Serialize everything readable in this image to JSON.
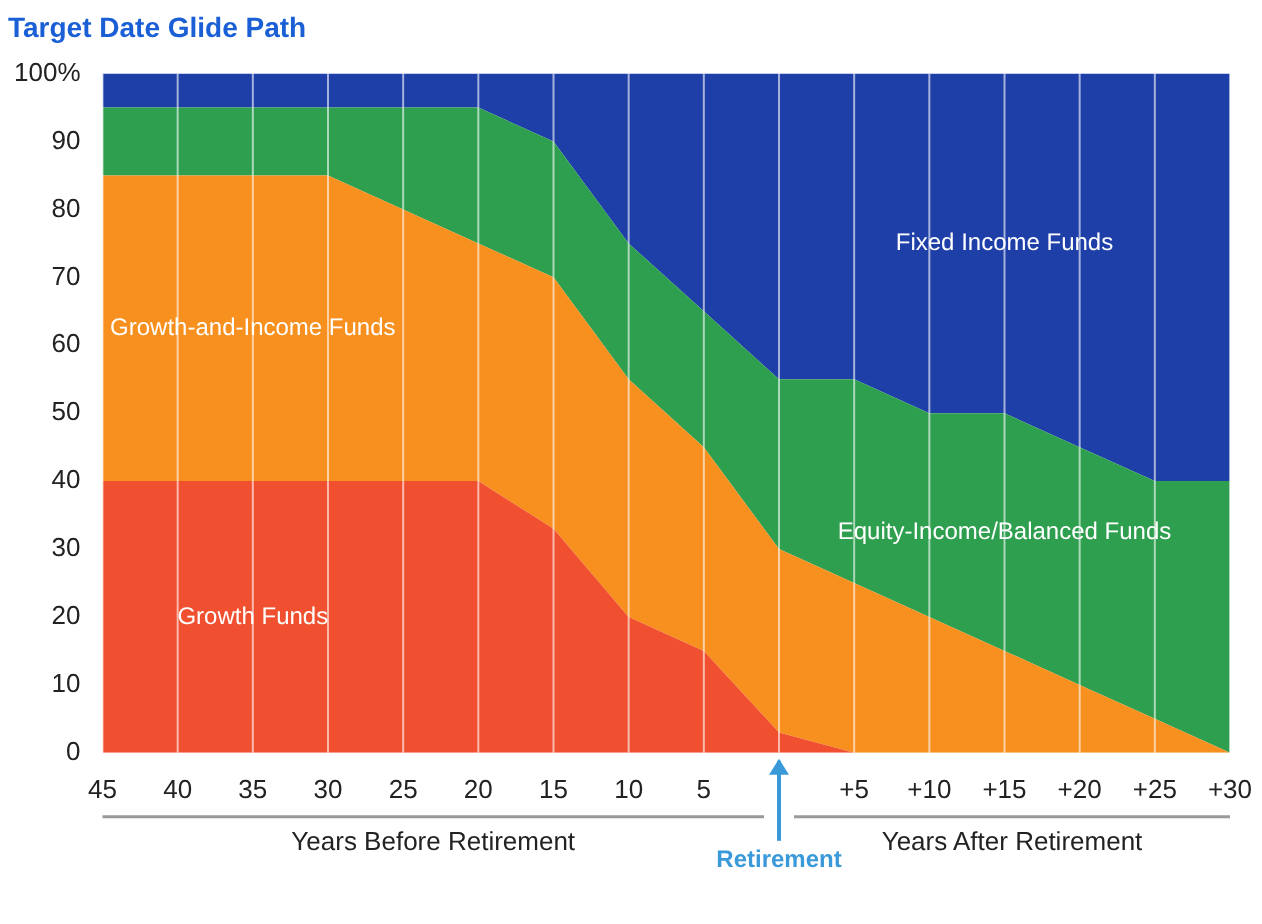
{
  "chart_data": {
    "type": "area",
    "title": "Target Date Glide Path",
    "stacked": true,
    "categories": [
      "45",
      "40",
      "35",
      "30",
      "25",
      "20",
      "15",
      "10",
      "5",
      null,
      "+5",
      "+10",
      "+15",
      "+20",
      "+25",
      "+30"
    ],
    "series": [
      {
        "name": "Growth Funds",
        "color": "#f0502f",
        "values": [
          40,
          40,
          40,
          40,
          40,
          40,
          33,
          20,
          15,
          3,
          0,
          0,
          0,
          0,
          0,
          0
        ]
      },
      {
        "name": "Growth-and-Income Funds",
        "color": "#f7901e",
        "values": [
          45,
          45,
          45,
          45,
          40,
          35,
          37,
          35,
          30,
          27,
          25,
          20,
          15,
          10,
          5,
          0
        ]
      },
      {
        "name": "Equity-Income/Balanced Funds",
        "color": "#2e9e4f",
        "values": [
          10,
          10,
          10,
          10,
          15,
          20,
          20,
          20,
          20,
          25,
          30,
          30,
          35,
          35,
          35,
          40
        ]
      },
      {
        "name": "Fixed Income Funds",
        "color": "#1f3fa8",
        "values": [
          5,
          5,
          5,
          5,
          5,
          5,
          10,
          25,
          35,
          45,
          45,
          50,
          50,
          55,
          60,
          60
        ]
      }
    ],
    "ylim": [
      0,
      100
    ],
    "yticks": [
      0,
      10,
      20,
      30,
      40,
      50,
      60,
      70,
      80,
      90,
      {
        "value": 100,
        "label": "100%"
      }
    ],
    "grid": "x",
    "legend": false,
    "annotations": [
      "Years Before Retirement",
      "Years After Retirement",
      "Retirement"
    ]
  }
}
